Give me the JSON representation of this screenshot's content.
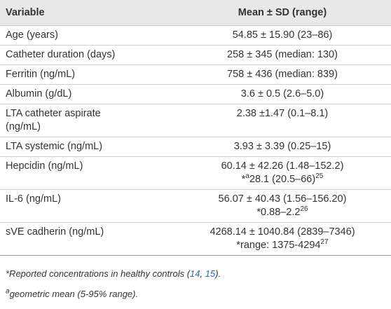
{
  "table": {
    "header": [
      "Variable",
      "Mean ± SD (range)"
    ],
    "rows": [
      {
        "variable": "Age (years)",
        "value": "54.85 ± 15.90 (23–86)"
      },
      {
        "variable": "Catheter duration (days)",
        "value": "258 ± 345 (median: 130)"
      },
      {
        "variable": "Ferritin (ng/mL)",
        "value": "758 ± 436 (median: 839)"
      },
      {
        "variable": "Albumin (g/dL)",
        "value": "3.6 ± 0.5 (2.6–5.0)"
      },
      {
        "variable": "LTA catheter aspirate (ng/mL)",
        "value": "2.38 ±1.47 (0.1–8.1)"
      },
      {
        "variable": "LTA systemic (ng/mL)",
        "value": "3.93 ± 3.39 (0.25–15)"
      },
      {
        "variable": "Hepcidin (ng/mL)",
        "value": "60.14 ± 42.26 (1.48–152.2)",
        "reference": [
          {
            "text": "*"
          },
          {
            "text": "a",
            "sup": true
          },
          {
            "text": "28.1 (20.5–66)"
          },
          {
            "text": "25",
            "sup": true
          }
        ]
      },
      {
        "variable": "IL-6 (ng/mL)",
        "value": "56.07 ± 40.43 (1.56–156.20)",
        "reference": [
          {
            "text": "*0.88–2.2"
          },
          {
            "text": "26",
            "sup": true
          }
        ]
      },
      {
        "variable": "sVE cadherin (ng/mL)",
        "value": "4268.14 ± 1040.84 (2839–7346)",
        "reference": [
          {
            "text": "*range: 1375-4294"
          },
          {
            "text": "27",
            "sup": true
          }
        ]
      }
    ]
  },
  "footnotes": [
    [
      {
        "text": "*Reported concentrations in healthy controls ("
      },
      {
        "text": "14",
        "link": true
      },
      {
        "text": ", "
      },
      {
        "text": "15",
        "link": true
      },
      {
        "text": ")."
      }
    ],
    [
      {
        "text": "a",
        "sup": true
      },
      {
        "text": "geometric mean (5-95% range)."
      }
    ]
  ]
}
